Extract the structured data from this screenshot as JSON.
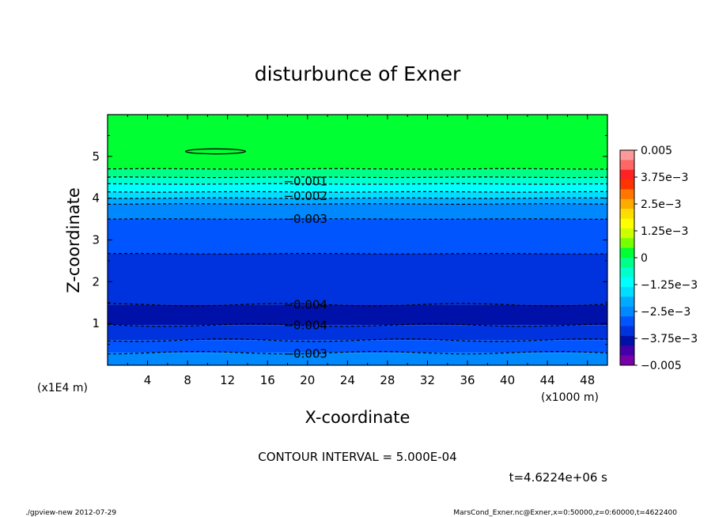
{
  "chart_data": {
    "type": "contour",
    "title": "disturbunce of Exner",
    "xlabel": "X-coordinate",
    "ylabel": "Z-coordinate",
    "x_unit_label": "(x1000 m)",
    "y_unit_label": "(x1E4 m)",
    "xlim": [
      0,
      50
    ],
    "ylim": [
      0,
      6
    ],
    "x_ticks": [
      "4",
      "8",
      "12",
      "16",
      "20",
      "24",
      "28",
      "32",
      "36",
      "40",
      "44",
      "48"
    ],
    "y_ticks": [
      "1",
      "2",
      "3",
      "4",
      "5"
    ],
    "contour_labels": [
      {
        "text": "-0.001",
        "x": 17.6,
        "z": 4.4
      },
      {
        "text": "-0.002",
        "x": 17.6,
        "z": 4.05
      },
      {
        "text": "-0.003",
        "x": 17.6,
        "z": 3.5
      },
      {
        "text": "-0.004",
        "x": 17.6,
        "z": 1.45
      },
      {
        "text": "-0.004",
        "x": 17.6,
        "z": 0.96
      },
      {
        "text": "-0.003",
        "x": 17.6,
        "z": 0.27
      }
    ],
    "contour_lines_z": [
      4.7,
      4.5,
      4.34,
      4.15,
      4.0,
      3.86,
      3.5,
      2.67,
      1.45,
      0.96,
      0.6,
      0.3
    ],
    "closed_contour": {
      "x_center": 10.8,
      "z_center": 5.12,
      "x_halfwidth": 3.0,
      "z_halfheight": 0.06
    },
    "colorbar": {
      "min": -0.005,
      "max": 0.005,
      "tick_labels": [
        "0.005",
        "3.75e-3",
        "2.5e-3",
        "1.25e-3",
        "0",
        "-1.25e-3",
        "-2.5e-3",
        "-3.75e-3",
        "-0.005"
      ],
      "tick_values": [
        0.005,
        0.00375,
        0.0025,
        0.00125,
        0,
        -0.00125,
        -0.0025,
        -0.00375,
        -0.005
      ],
      "colors_top_to_bottom": [
        "#ff9999",
        "#ff6666",
        "#ff2222",
        "#ff3300",
        "#ff7700",
        "#ffaa00",
        "#ffdd00",
        "#ffff00",
        "#ccff00",
        "#77ff00",
        "#00ff33",
        "#00ff88",
        "#00ffcc",
        "#00ffff",
        "#00ddff",
        "#00aaff",
        "#0088ff",
        "#0055ff",
        "#0033dd",
        "#0011aa",
        "#4400aa",
        "#7700aa"
      ]
    },
    "field_bands": [
      {
        "z_from": 4.7,
        "z_to": 6.0,
        "color": "#00ff33"
      },
      {
        "z_from": 4.5,
        "z_to": 4.7,
        "color": "#00ff88"
      },
      {
        "z_from": 4.34,
        "z_to": 4.5,
        "color": "#00ffcc"
      },
      {
        "z_from": 4.15,
        "z_to": 4.34,
        "color": "#00ffff"
      },
      {
        "z_from": 4.0,
        "z_to": 4.15,
        "color": "#00ddff"
      },
      {
        "z_from": 3.86,
        "z_to": 4.0,
        "color": "#00aaff"
      },
      {
        "z_from": 3.5,
        "z_to": 3.86,
        "color": "#0088ff"
      },
      {
        "z_from": 2.67,
        "z_to": 3.5,
        "color": "#0055ff"
      },
      {
        "z_from": 1.45,
        "z_to": 2.67,
        "color": "#0033dd"
      },
      {
        "z_from": 0.96,
        "z_to": 1.45,
        "color": "#0011aa"
      },
      {
        "z_from": 0.6,
        "z_to": 0.96,
        "color": "#0033dd"
      },
      {
        "z_from": 0.3,
        "z_to": 0.6,
        "color": "#0055ff"
      },
      {
        "z_from": 0.0,
        "z_to": 0.3,
        "color": "#0088ff"
      }
    ]
  },
  "annotations": {
    "contour_interval": "CONTOUR INTERVAL = 5.000E-04",
    "time": "t=4.6224e+06 s",
    "footer_left": "./gpview-new  2012-07-29",
    "footer_right": "MarsCond_Exner.nc@Exner,x=0:50000,z=0:60000,t=4622400"
  }
}
